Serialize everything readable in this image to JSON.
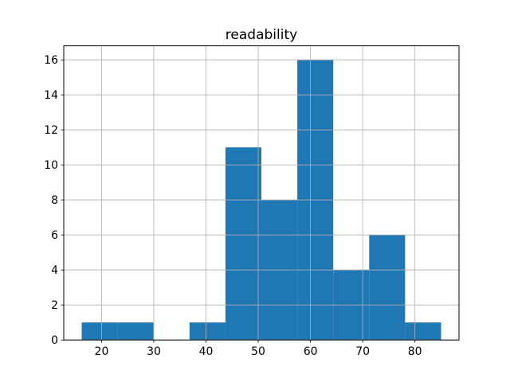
{
  "figure": {
    "background": "#ffffff"
  },
  "chart_data": {
    "type": "histogram",
    "title": "readability",
    "xlabel": "",
    "ylabel": "",
    "bin_edges": [
      16.2,
      23.08,
      29.96,
      36.84,
      43.72,
      50.6,
      57.48,
      64.36,
      71.24,
      78.12,
      85.0
    ],
    "counts": [
      1,
      1,
      0,
      1,
      11,
      8,
      16,
      4,
      6,
      1
    ],
    "xticks": [
      20,
      30,
      40,
      50,
      60,
      70,
      80
    ],
    "yticks": [
      0,
      2,
      4,
      6,
      8,
      10,
      12,
      14,
      16
    ],
    "xlim": [
      12.76,
      88.44
    ],
    "ylim": [
      0,
      16.8
    ],
    "bar_color": "#1f77b4",
    "grid_color": "#b0b0b0",
    "spine_color": "#000000",
    "grid": true,
    "legend": null
  }
}
